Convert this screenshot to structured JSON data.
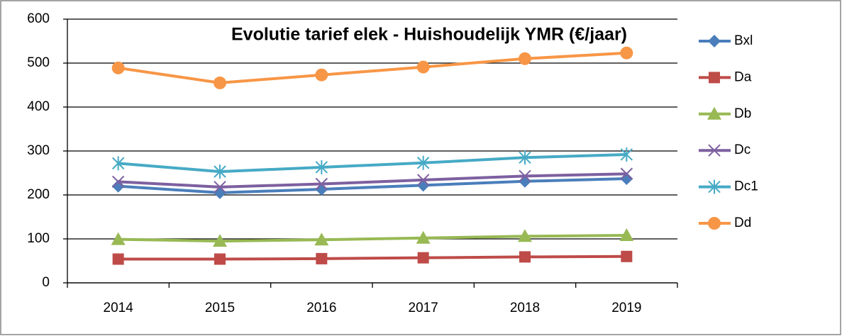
{
  "chart_data": {
    "type": "line",
    "title": "Evolutie tarief elek - Huishoudelijk YMR (€/jaar)",
    "categories": [
      "2014",
      "2015",
      "2016",
      "2017",
      "2018",
      "2019"
    ],
    "series": [
      {
        "name": "Bxl",
        "color": "#4a7ebb",
        "marker": "diamond",
        "values": [
          220,
          205,
          213,
          222,
          231,
          237
        ]
      },
      {
        "name": "Da",
        "color": "#be4b48",
        "marker": "square",
        "values": [
          54,
          54,
          55,
          57,
          59,
          60
        ]
      },
      {
        "name": "Db",
        "color": "#98b954",
        "marker": "triangle",
        "values": [
          99,
          95,
          98,
          102,
          106,
          108
        ]
      },
      {
        "name": "Dc",
        "color": "#7d60a0",
        "marker": "x",
        "values": [
          230,
          218,
          225,
          234,
          243,
          248
        ]
      },
      {
        "name": "Dc1",
        "color": "#46aac5",
        "marker": "star",
        "values": [
          272,
          253,
          263,
          273,
          285,
          292
        ]
      },
      {
        "name": "Dd",
        "color": "#f79646",
        "marker": "circle",
        "values": [
          489,
          455,
          473,
          491,
          510,
          523
        ]
      }
    ],
    "ylim": [
      0,
      600
    ],
    "yticks": [
      0,
      100,
      200,
      300,
      400,
      500,
      600
    ],
    "grid": true,
    "legend": "right"
  }
}
